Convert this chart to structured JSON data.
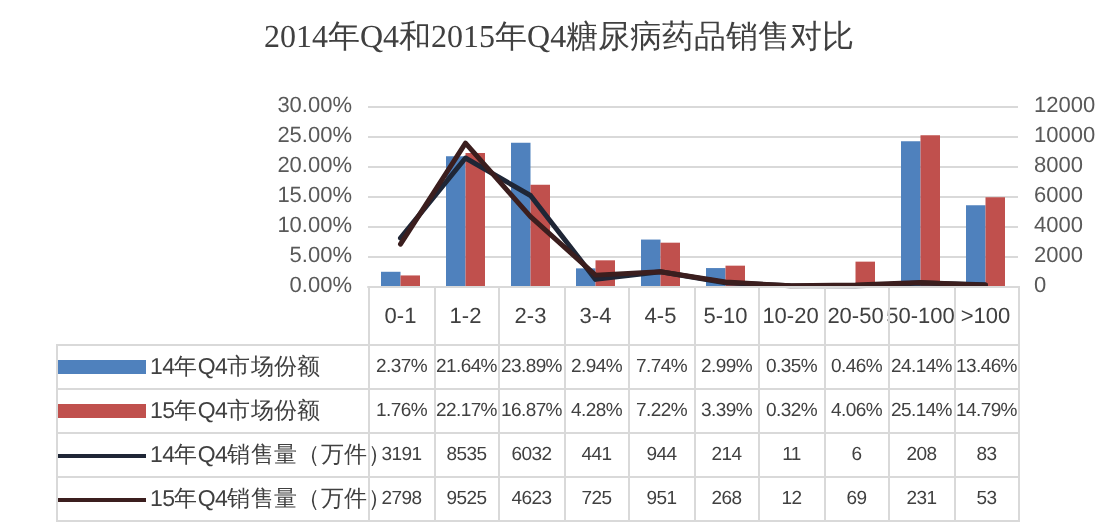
{
  "chart_data": {
    "type": "bar",
    "title": "2014年Q4和2015年Q4糖尿病药品销售对比",
    "categories": [
      "0-1",
      "1-2",
      "2-3",
      "3-4",
      "4-5",
      "5-10",
      "10-20",
      "20-50",
      "50-100",
      ">100"
    ],
    "series": [
      {
        "name": "14年Q4市场份额",
        "color": "#4f81bd",
        "values": [
          2.37,
          21.64,
          23.89,
          2.94,
          7.74,
          2.99,
          0.35,
          0.46,
          24.14,
          13.46
        ],
        "value_labels": [
          "2.37%",
          "21.64%",
          "23.89%",
          "2.94%",
          "7.74%",
          "2.99%",
          "0.35%",
          "0.46%",
          "24.14%",
          "13.46%"
        ]
      },
      {
        "name": "15年Q4市场份额",
        "color": "#c0504d",
        "values": [
          1.76,
          22.17,
          16.87,
          4.28,
          7.22,
          3.39,
          0.32,
          4.06,
          25.14,
          14.79
        ],
        "value_labels": [
          "1.76%",
          "22.17%",
          "16.87%",
          "4.28%",
          "7.22%",
          "3.39%",
          "0.32%",
          "4.06%",
          "25.14%",
          "14.79%"
        ]
      },
      {
        "name": "14年Q4销售量（万件）",
        "type": "line",
        "axis": "y2",
        "color": "#1f2636",
        "values": [
          3191,
          8535,
          6032,
          441,
          944,
          214,
          11,
          6,
          208,
          83
        ],
        "value_labels": [
          "3191",
          "8535",
          "6032",
          "441",
          "944",
          "214",
          "11",
          "6",
          "208",
          "83"
        ]
      },
      {
        "name": "15年Q4销售量（万件）",
        "type": "line",
        "axis": "y2",
        "color": "#3b1e1e",
        "values": [
          2798,
          9525,
          4623,
          725,
          951,
          268,
          12,
          69,
          231,
          53
        ],
        "value_labels": [
          "2798",
          "9525",
          "4623",
          "725",
          "951",
          "268",
          "12",
          "69",
          "231",
          "53"
        ]
      }
    ],
    "ylim": [
      0,
      30
    ],
    "yticks": [
      {
        "value": 0,
        "label": "0.00%"
      },
      {
        "value": 5,
        "label": "5.00%"
      },
      {
        "value": 10,
        "label": "10.00%"
      },
      {
        "value": 15,
        "label": "15.00%"
      },
      {
        "value": 20,
        "label": "20.00%"
      },
      {
        "value": 25,
        "label": "25.00%"
      },
      {
        "value": 30,
        "label": "30.00%"
      }
    ],
    "y2lim": [
      0,
      12000
    ],
    "y2ticks": [
      0,
      2000,
      4000,
      6000,
      8000,
      10000,
      12000
    ],
    "grid": "y",
    "legend": "bottom",
    "marker": "none",
    "line_style": "solid"
  }
}
